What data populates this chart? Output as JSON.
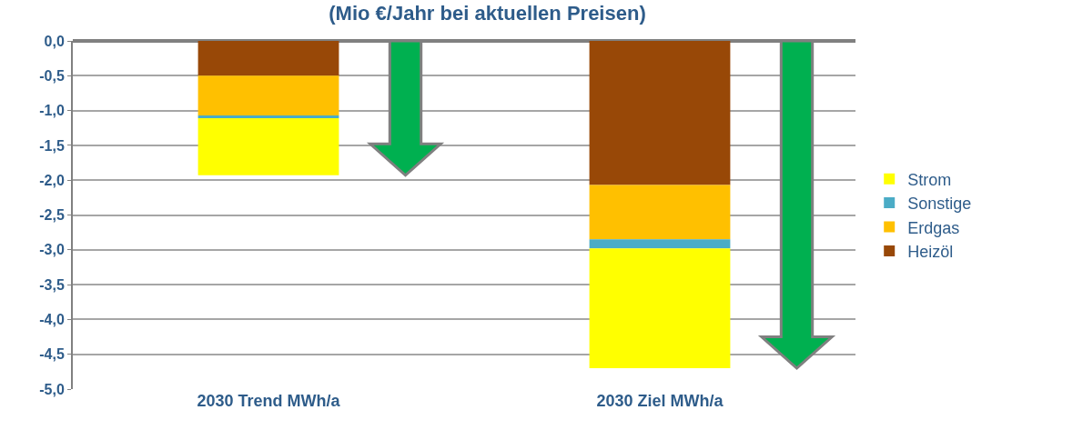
{
  "chart_data": {
    "type": "bar",
    "stacked": true,
    "title": "(Mio €/Jahr bei aktuellen Preisen)",
    "categories": [
      "2030 Trend MWh/a",
      "2030 Ziel MWh/a"
    ],
    "series": [
      {
        "name": "Heizöl",
        "color": "#984807",
        "values": [
          -0.5,
          -2.07
        ]
      },
      {
        "name": "Erdgas",
        "color": "#ffc000",
        "values": [
          -0.57,
          -0.78
        ]
      },
      {
        "name": "Sonstige",
        "color": "#4bacc6",
        "values": [
          -0.04,
          -0.13
        ]
      },
      {
        "name": "Strom",
        "color": "#ffff00",
        "values": [
          -0.82,
          -1.72
        ]
      }
    ],
    "ylim": [
      -5.0,
      0.0
    ],
    "yticks": [
      {
        "value": 0.0,
        "label": "0,0"
      },
      {
        "value": -0.5,
        "label": "-0,5"
      },
      {
        "value": -1.0,
        "label": "-1,0"
      },
      {
        "value": -1.5,
        "label": "-1,5"
      },
      {
        "value": -2.0,
        "label": "-2,0"
      },
      {
        "value": -2.5,
        "label": "-2,5"
      },
      {
        "value": -3.0,
        "label": "-3,0"
      },
      {
        "value": -3.5,
        "label": "-3,5"
      },
      {
        "value": -4.0,
        "label": "-4,0"
      },
      {
        "value": -4.5,
        "label": "-4,5"
      },
      {
        "value": -5.0,
        "label": "-5,0"
      }
    ],
    "grid": "y",
    "legend": "right"
  }
}
